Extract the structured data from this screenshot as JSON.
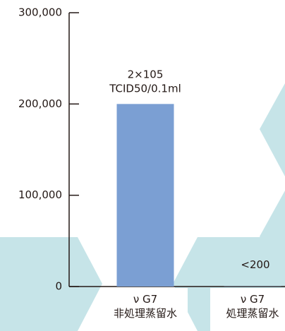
{
  "chart_data": {
    "type": "bar",
    "categories": [
      "ν G7\n非処理蒸留水",
      "ν G7\n処理蒸留水"
    ],
    "values": [
      200000,
      200
    ],
    "value_labels": [
      "2×105\nTCID50/0.1ml",
      "<200"
    ],
    "color": "#7b9fd3",
    "ylim": [
      0,
      300000
    ],
    "yticks": [
      0,
      {
        "value": 100000,
        "label": "100,000"
      },
      {
        "value": 200000,
        "label": "200,000"
      },
      {
        "value": 300000,
        "label": "300,000"
      }
    ]
  }
}
